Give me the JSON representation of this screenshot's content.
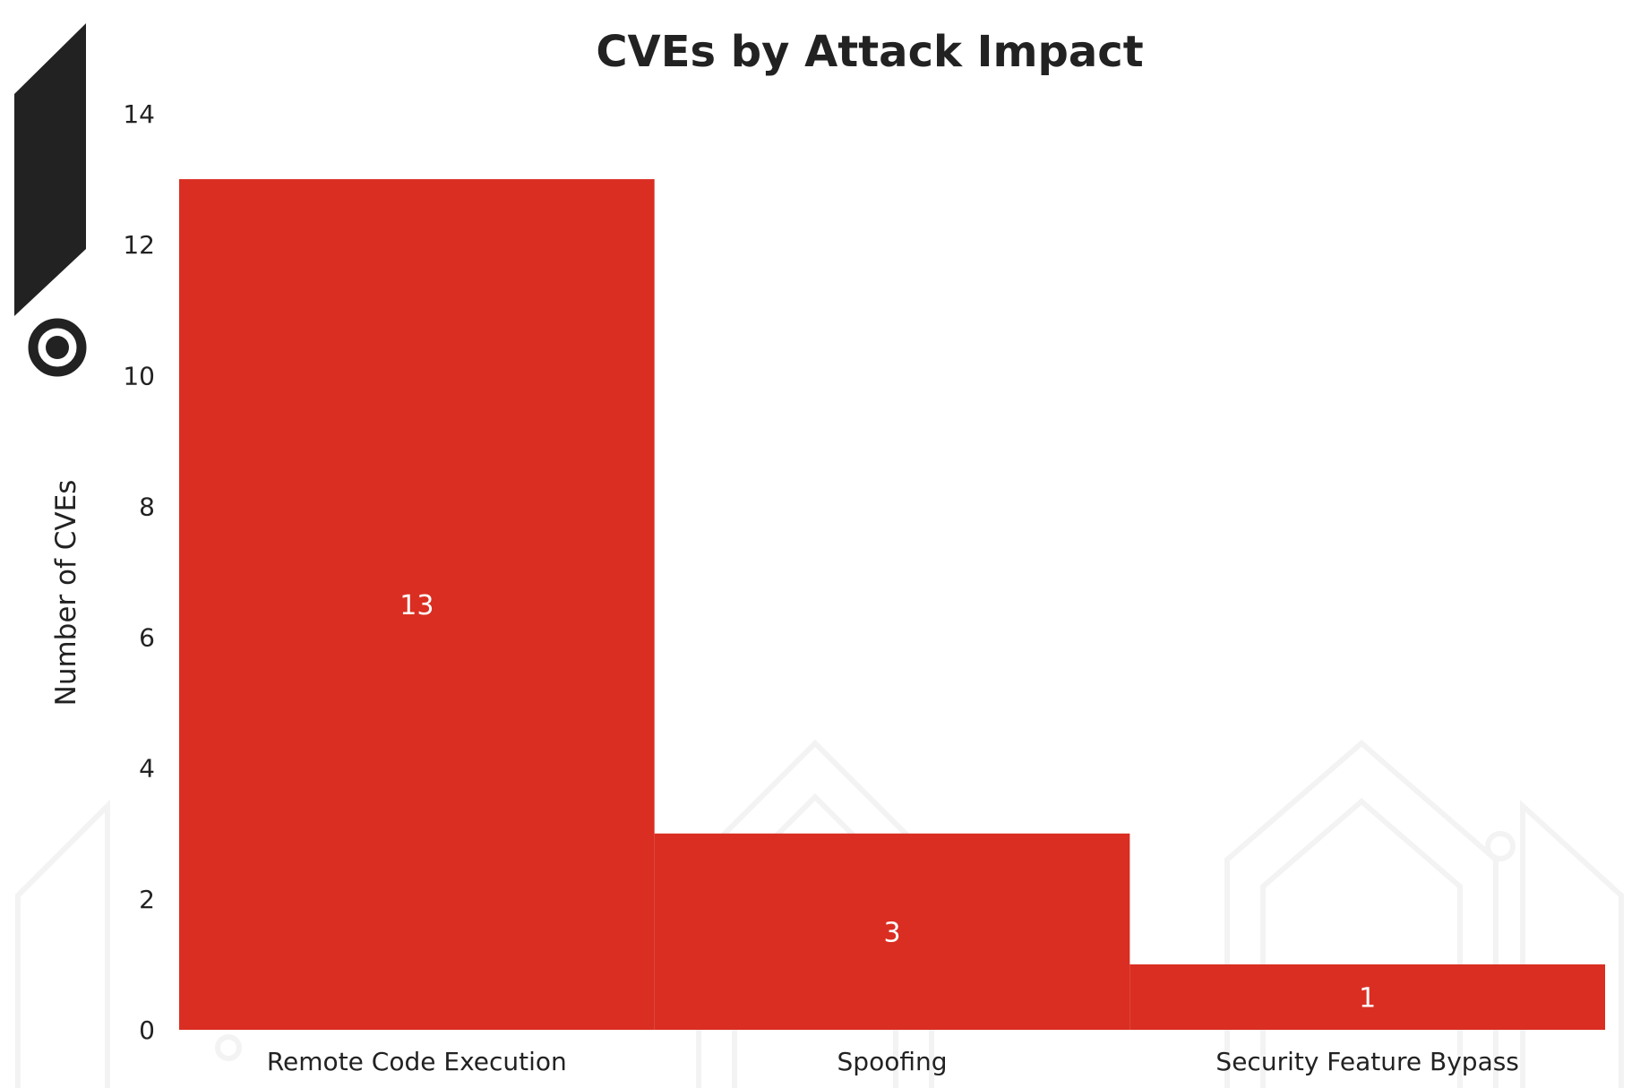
{
  "colors": {
    "bar": "#DA2E22",
    "text": "#222222",
    "data_label": "#FFFFFF",
    "badge": "#222222",
    "watermark": "#f3f3f3"
  },
  "icons": {
    "logo_badge": "logo-badge-icon",
    "target": "target-icon",
    "watermark": "circuit-pattern-watermark"
  },
  "chart_data": {
    "type": "bar",
    "title": "CVEs by Attack Impact",
    "xlabel": "",
    "ylabel": "Number of CVEs",
    "categories": [
      "Remote Code Execution",
      "Spoofing",
      "Security Feature Bypass"
    ],
    "values": [
      13,
      3,
      1
    ],
    "data_labels": [
      "13",
      "3",
      "1"
    ],
    "ylim": [
      0,
      14
    ],
    "yticks": [
      "0",
      "2",
      "4",
      "6",
      "8",
      "10",
      "12",
      "14"
    ],
    "grid": false,
    "legend": "none"
  }
}
